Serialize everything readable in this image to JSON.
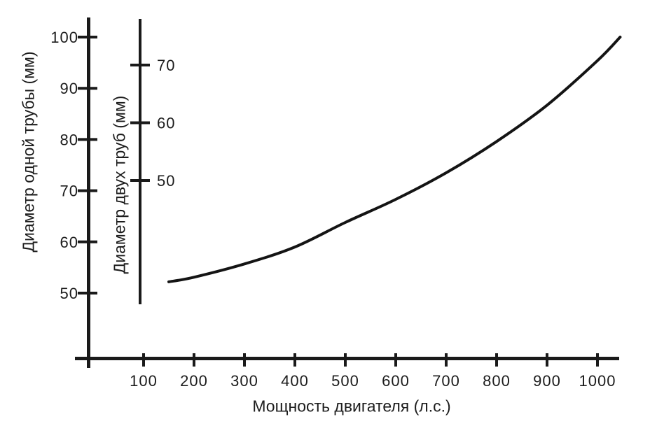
{
  "chart_data": {
    "type": "line",
    "title": "",
    "background_color": "#ffffff",
    "axis_color": "#1a1a1a",
    "line_color": "#141414",
    "grid": false,
    "legend": "none",
    "x_axis": {
      "label": "Мощность двигателя (л.с.)",
      "ticks": [
        100,
        200,
        300,
        400,
        500,
        600,
        700,
        800,
        900,
        1000
      ],
      "range": [
        0,
        1080
      ]
    },
    "y_axis_primary": {
      "label": "Диаметр одной трубы (мм)",
      "ticks": [
        50,
        60,
        70,
        80,
        90,
        100
      ],
      "range": [
        35,
        104
      ]
    },
    "y_axis_secondary": {
      "label": "Диаметр двух труб (мм)",
      "ticks": [
        50,
        60,
        70
      ],
      "range": [
        29,
        78
      ]
    },
    "series": [
      {
        "name": "pipe-diameter-vs-power",
        "points": [
          [
            150,
            52.2
          ],
          [
            200,
            53.1
          ],
          [
            300,
            55.7
          ],
          [
            400,
            59.0
          ],
          [
            500,
            63.8
          ],
          [
            600,
            68.3
          ],
          [
            700,
            73.5
          ],
          [
            800,
            79.6
          ],
          [
            900,
            86.7
          ],
          [
            1000,
            95.4
          ],
          [
            1045,
            100.0
          ]
        ]
      }
    ]
  }
}
